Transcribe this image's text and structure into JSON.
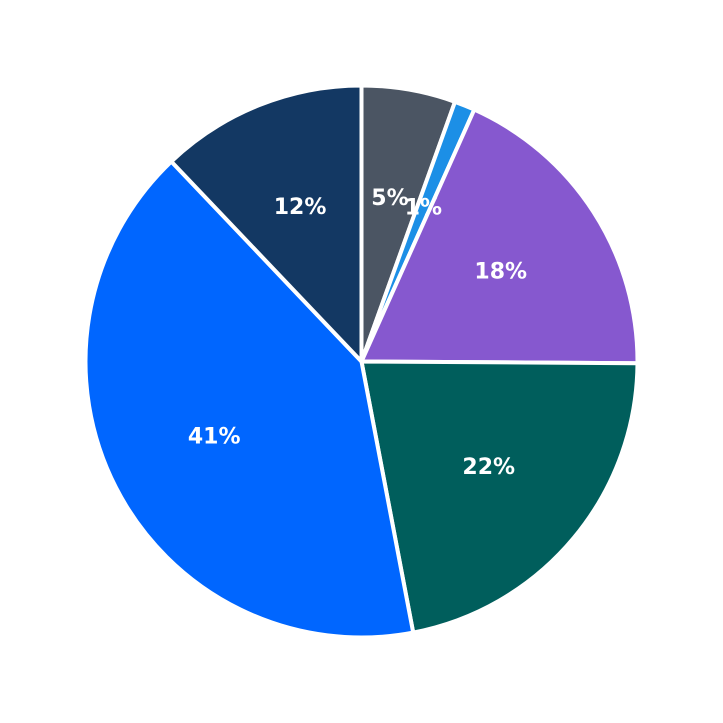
{
  "chart_data": {
    "type": "pie",
    "title": "",
    "start_angle_deg": 90,
    "direction": "clockwise",
    "legend": "none",
    "slices": [
      {
        "value": 5.5,
        "label": "5%",
        "color": "#4b5563"
      },
      {
        "value": 1.2,
        "label": "1%",
        "color": "#1c8fe6"
      },
      {
        "value": 18.4,
        "label": "18%",
        "color": "#8658cf"
      },
      {
        "value": 21.9,
        "label": "22%",
        "color": "#005e5c"
      },
      {
        "value": 40.9,
        "label": "41%",
        "color": "#0066ff"
      },
      {
        "value": 12.1,
        "label": "12%",
        "color": "#133863"
      }
    ]
  }
}
